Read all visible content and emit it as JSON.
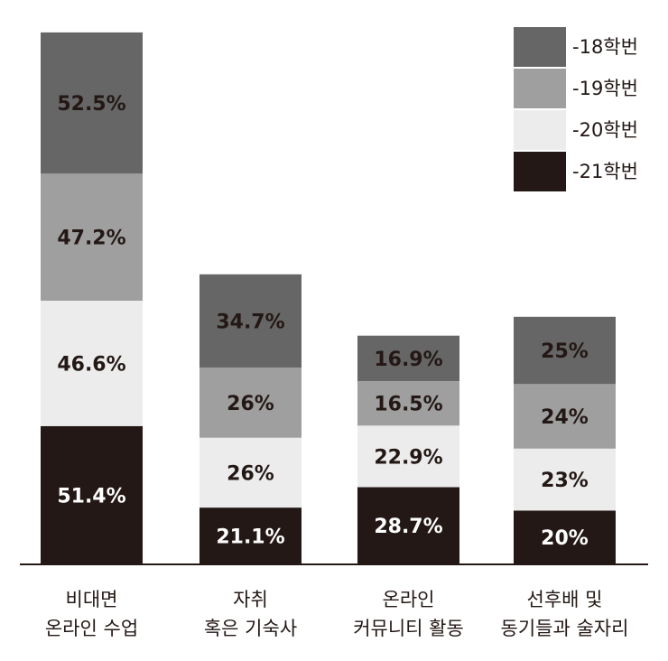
{
  "chart_data": {
    "type": "bar",
    "stacked": true,
    "categories": [
      [
        "비대면",
        "온라인 수업"
      ],
      [
        "자취",
        "혹은 기숙사"
      ],
      [
        "온라인",
        "커뮤니티 활동"
      ],
      [
        "선후배 및",
        "동기들과 술자리"
      ]
    ],
    "series": [
      {
        "name": "-21학번",
        "values": [
          51.4,
          21.1,
          28.7,
          20
        ],
        "labels": [
          "51.4%",
          "21.1%",
          "28.7%",
          "20%"
        ],
        "color": "#231815",
        "text_color": "#ffffff"
      },
      {
        "name": "-20학번",
        "values": [
          46.6,
          26,
          22.9,
          23
        ],
        "labels": [
          "46.6%",
          "26%",
          "22.9%",
          "23%"
        ],
        "color": "#ececec",
        "text_color": "#231815"
      },
      {
        "name": "-19학번",
        "values": [
          47.2,
          26,
          16.5,
          24
        ],
        "labels": [
          "47.2%",
          "26%",
          "16.5%",
          "24%"
        ],
        "color": "#9f9f9f",
        "text_color": "#231815"
      },
      {
        "name": "-18학번",
        "values": [
          52.5,
          34.7,
          16.9,
          25
        ],
        "labels": [
          "52.5%",
          "34.7%",
          "16.9%",
          "25%"
        ],
        "color": "#666666",
        "text_color": "#231815"
      }
    ],
    "legend_order": [
      "-18학번",
      "-19학번",
      "-20학번",
      "-21학번"
    ],
    "legend_position": "top-right",
    "axis_color": "#231815",
    "grid": false
  }
}
